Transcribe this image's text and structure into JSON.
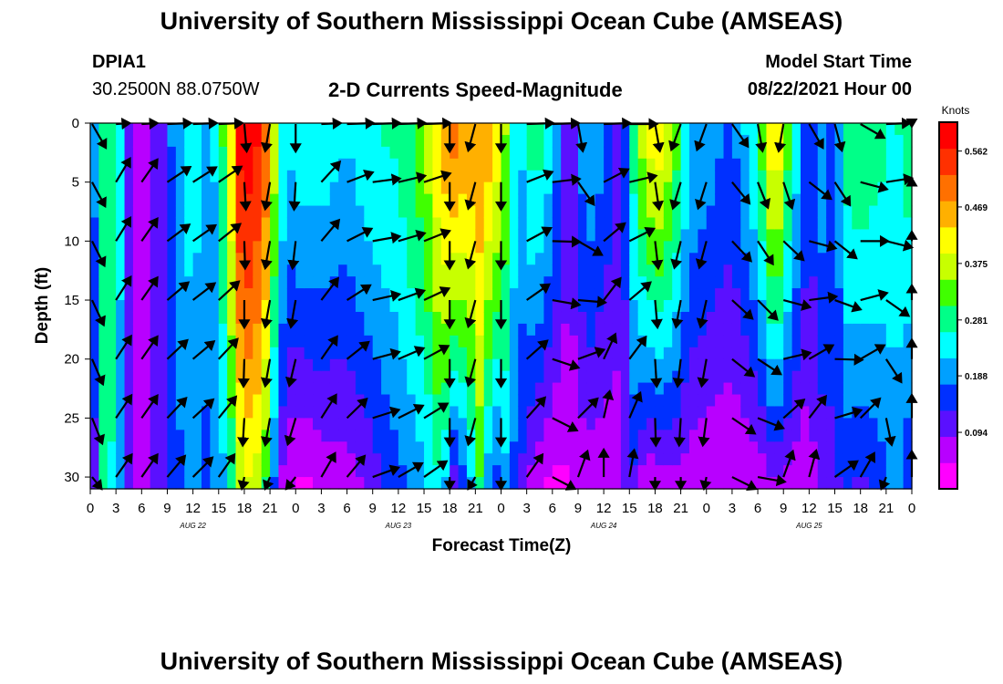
{
  "header": {
    "title": "University of Southern Mississippi Ocean Cube (AMSEAS)",
    "station": "DPIA1",
    "coords": "30.2500N  88.0750W",
    "plot_title": "2-D Currents Speed-Magnitude",
    "start_label": "Model Start Time",
    "start_value": "08/22/2021 Hour 00"
  },
  "footer": {
    "title": "University of Southern Mississippi Ocean Cube (AMSEAS)"
  },
  "colors": {
    "scale": [
      "#ff00ff",
      "#b800ff",
      "#5a10ff",
      "#0030ff",
      "#00a0ff",
      "#00ffff",
      "#00ff88",
      "#40ff00",
      "#c8ff00",
      "#ffff00",
      "#ffb000",
      "#ff7000",
      "#ff3000",
      "#ff0000"
    ],
    "arrow": "#000000"
  },
  "chart_data": {
    "type": "heatmap",
    "xlabel": "Forecast Time(Z)",
    "ylabel": "Depth (ft)",
    "x_ticks": [
      "0",
      "3",
      "6",
      "9",
      "12",
      "15",
      "18",
      "21",
      "0",
      "3",
      "6",
      "9",
      "12",
      "15",
      "18",
      "21",
      "0",
      "3",
      "6",
      "9",
      "12",
      "15",
      "18",
      "21",
      "0",
      "3",
      "6",
      "9",
      "12",
      "15",
      "18",
      "21",
      "0"
    ],
    "x_range_hours": [
      0,
      96
    ],
    "day_labels": [
      {
        "hour": 12,
        "label": "AUG 22"
      },
      {
        "hour": 36,
        "label": "AUG 23"
      },
      {
        "hour": 60,
        "label": "AUG 24"
      },
      {
        "hour": 84,
        "label": "AUG 25"
      }
    ],
    "y_ticks": [
      0,
      5,
      10,
      15,
      20,
      25,
      30
    ],
    "y_range": [
      0,
      31
    ],
    "y_inverted": true,
    "colorbar": {
      "unit": "Knots",
      "range": [
        0,
        0.61
      ],
      "ticks": [
        "0.562",
        "0.469",
        "0.375",
        "0.281",
        "0.188",
        "0.094"
      ],
      "tick_values": [
        0.562,
        0.469,
        0.375,
        0.281,
        0.188,
        0.094
      ]
    },
    "speed_profile": {
      "hours": [
        0,
        1.5,
        3,
        4.5,
        6,
        8,
        10,
        12,
        14,
        16,
        17.5,
        19,
        20.5,
        22,
        23,
        24.5,
        27,
        30,
        33,
        36,
        39,
        41,
        42.5,
        44,
        45.5,
        47,
        48.5,
        50,
        52,
        54,
        56,
        58,
        60,
        62,
        63.5,
        65,
        66.5,
        68,
        70,
        72,
        75,
        78,
        80,
        81.5,
        83,
        84,
        85.5,
        87,
        88.5,
        90,
        92,
        94,
        96
      ],
      "surface_knots": [
        0.13,
        0.3,
        0.3,
        0.1,
        0.07,
        0.1,
        0.2,
        0.25,
        0.18,
        0.35,
        0.58,
        0.6,
        0.52,
        0.3,
        0.22,
        0.25,
        0.25,
        0.22,
        0.26,
        0.27,
        0.34,
        0.45,
        0.5,
        0.47,
        0.48,
        0.45,
        0.35,
        0.2,
        0.3,
        0.22,
        0.1,
        0.22,
        0.18,
        0.1,
        0.28,
        0.4,
        0.42,
        0.36,
        0.22,
        0.2,
        0.16,
        0.28,
        0.46,
        0.32,
        0.2,
        0.14,
        0.2,
        0.16,
        0.28,
        0.3,
        0.28,
        0.25,
        0.3
      ],
      "bottom_knots": [
        0.03,
        0.28,
        0.24,
        0.1,
        0.07,
        0.1,
        0.16,
        0.18,
        0.16,
        0.22,
        0.36,
        0.4,
        0.3,
        0.1,
        0.05,
        0.03,
        0.05,
        0.06,
        0.1,
        0.16,
        0.2,
        0.26,
        0.1,
        0.16,
        0.3,
        0.12,
        0.2,
        0.14,
        0.05,
        0.03,
        0.04,
        0.06,
        0.05,
        0.07,
        0.12,
        0.04,
        0.06,
        0.07,
        0.06,
        0.05,
        0.04,
        0.05,
        0.08,
        0.07,
        0.05,
        0.06,
        0.1,
        0.12,
        0.14,
        0.12,
        0.14,
        0.2,
        0.12
      ]
    },
    "vectors": {
      "hours": [
        0,
        3,
        6,
        9,
        12,
        15,
        18,
        21,
        24,
        27,
        30,
        33,
        36,
        39,
        42,
        45,
        48,
        51,
        54,
        57,
        60,
        63,
        66,
        69,
        72,
        75,
        78,
        81,
        84,
        87,
        90,
        93,
        96
      ],
      "depths_ft": [
        0,
        5,
        10,
        15,
        20,
        25,
        30
      ],
      "surface_dir_deg": [
        150,
        30,
        35,
        60,
        60,
        60,
        175,
        190,
        180,
        45,
        75,
        85,
        80,
        75,
        180,
        195,
        180,
        75,
        75,
        170,
        75,
        90,
        170,
        200,
        200,
        145,
        170,
        190,
        150,
        165,
        120,
        60,
        95
      ],
      "bottom_dir_deg": [
        160,
        35,
        35,
        40,
        45,
        35,
        185,
        190,
        200,
        30,
        40,
        70,
        60,
        55,
        180,
        195,
        180,
        35,
        125,
        20,
        0,
        10,
        180,
        180,
        185,
        120,
        100,
        20,
        15,
        55,
        30,
        190,
        20
      ]
    }
  }
}
